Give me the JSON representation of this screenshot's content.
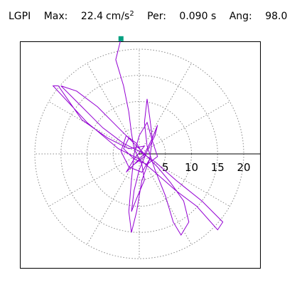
{
  "header": {
    "station": "LGPI",
    "max_label": "Max:",
    "max_value": "22.4",
    "max_unit": "cm/s",
    "max_unit_exp": "2",
    "per_label": "Per:",
    "per_value": "0.090 s",
    "ang_label": "Ang:",
    "ang_value": "98.0"
  },
  "chart_data": {
    "type": "scatter",
    "subtype": "polar particle-motion plot",
    "rlim": [
      0,
      24
    ],
    "ticks": [
      "5",
      "10",
      "15",
      "20"
    ],
    "tick_values": [
      5,
      10,
      15,
      20
    ],
    "ring_radii": [
      5,
      10,
      15,
      20
    ],
    "spoke_angles_deg": [
      0,
      30,
      60,
      90,
      120,
      150,
      180,
      210,
      240,
      270,
      300,
      330
    ],
    "grid": true,
    "trace_color": "#9400d3",
    "marker_color": "#00a080",
    "marker_point": [
      -3.5,
      22.0
    ],
    "trace": [
      [
        -3.5,
        22.0
      ],
      [
        -4.5,
        18.0
      ],
      [
        -3.0,
        13.0
      ],
      [
        -2.0,
        8.0
      ],
      [
        -1.5,
        4.0
      ],
      [
        -1.0,
        1.0
      ],
      [
        0.5,
        -2.0
      ],
      [
        1.0,
        -5.0
      ],
      [
        -0.5,
        -8.5
      ],
      [
        -1.5,
        -11.0
      ],
      [
        -1.0,
        -7.0
      ],
      [
        0.0,
        -3.0
      ],
      [
        1.5,
        0.5
      ],
      [
        3.0,
        3.5
      ],
      [
        3.5,
        5.5
      ],
      [
        2.5,
        3.0
      ],
      [
        1.0,
        0.0
      ],
      [
        -1.0,
        -2.0
      ],
      [
        -2.5,
        -3.5
      ],
      [
        -1.0,
        -1.0
      ],
      [
        1.0,
        1.5
      ],
      [
        -2.0,
        1.0
      ],
      [
        -6.0,
        3.0
      ],
      [
        -11.0,
        6.5
      ],
      [
        -15.5,
        13.0
      ],
      [
        -16.5,
        13.0
      ],
      [
        -10.0,
        6.0
      ],
      [
        -4.0,
        1.0
      ],
      [
        0.0,
        -1.0
      ],
      [
        3.0,
        -3.5
      ],
      [
        7.0,
        -7.0
      ],
      [
        11.0,
        -10.0
      ],
      [
        15.0,
        -14.5
      ],
      [
        16.0,
        -13.0
      ],
      [
        12.0,
        -9.0
      ],
      [
        7.0,
        -5.0
      ],
      [
        3.0,
        -1.5
      ],
      [
        0.0,
        0.5
      ],
      [
        -3.0,
        2.0
      ],
      [
        -7.0,
        5.0
      ],
      [
        -11.0,
        9.0
      ],
      [
        -15.0,
        13.0
      ],
      [
        -12.0,
        12.0
      ],
      [
        -8.0,
        9.0
      ],
      [
        -4.0,
        5.0
      ],
      [
        -1.0,
        2.0
      ],
      [
        1.0,
        0.0
      ],
      [
        3.5,
        -2.5
      ],
      [
        6.0,
        -5.5
      ],
      [
        8.5,
        -9.0
      ],
      [
        9.5,
        -13.0
      ],
      [
        8.0,
        -15.5
      ],
      [
        6.5,
        -13.0
      ],
      [
        5.0,
        -8.0
      ],
      [
        3.0,
        -3.0
      ],
      [
        1.5,
        1.5
      ],
      [
        1.0,
        6.0
      ],
      [
        1.5,
        10.5
      ],
      [
        2.0,
        7.0
      ],
      [
        2.5,
        3.0
      ],
      [
        2.0,
        -1.0
      ],
      [
        0.5,
        -5.0
      ],
      [
        -0.5,
        -11.0
      ],
      [
        -1.5,
        -15.0
      ],
      [
        -2.0,
        -11.0
      ],
      [
        -1.5,
        -5.0
      ],
      [
        -1.0,
        0.0
      ],
      [
        0.0,
        3.5
      ],
      [
        1.5,
        6.0
      ],
      [
        2.5,
        2.5
      ],
      [
        3.5,
        -0.5
      ],
      [
        1.5,
        -2.0
      ],
      [
        -1.0,
        -1.0
      ],
      [
        -3.0,
        1.0
      ],
      [
        -2.0,
        3.0
      ],
      [
        0.0,
        1.0
      ],
      [
        2.0,
        -1.0
      ],
      [
        0.5,
        -3.5
      ],
      [
        -2.0,
        -2.5
      ],
      [
        -3.5,
        0.5
      ],
      [
        -2.5,
        3.5
      ],
      [
        -0.5,
        2.0
      ],
      [
        1.0,
        -0.5
      ],
      [
        -1.0,
        -2.0
      ]
    ]
  }
}
